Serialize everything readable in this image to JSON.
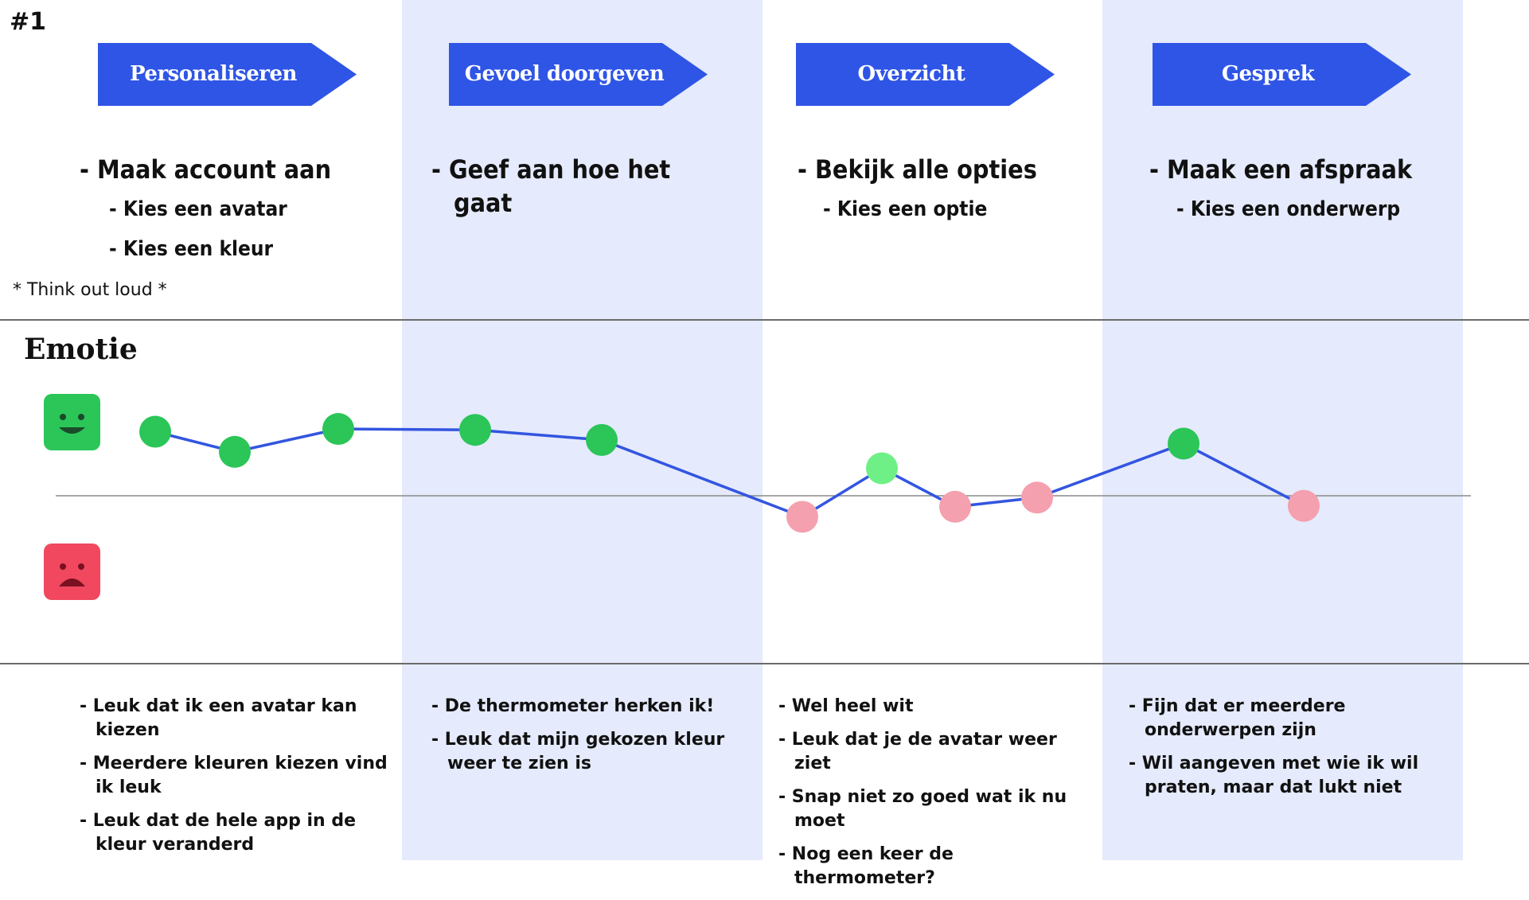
{
  "page": {
    "number": "#1"
  },
  "colors": {
    "accent": "#2f55e6",
    "band": "#e5eafc",
    "positive": "#2bc558",
    "positive_light": "#6ef087",
    "negative": "#f4a0ae",
    "line": "#3355e0"
  },
  "phases": [
    {
      "label": "Personaliseren"
    },
    {
      "label": "Gevoel doorgeven"
    },
    {
      "label": "Overzicht"
    },
    {
      "label": "Gesprek"
    }
  ],
  "tasks": [
    {
      "main": [
        "- Maak account aan"
      ],
      "subs": [
        "- Kies een avatar",
        "- Kies een kleur"
      ]
    },
    {
      "main": [
        "- Geef aan hoe het",
        "gaat"
      ],
      "subs": []
    },
    {
      "main": [
        "- Bekijk alle opties"
      ],
      "subs": [
        "- Kies een optie"
      ]
    },
    {
      "main": [
        "- Maak een afspraak"
      ],
      "subs": [
        "- Kies een onderwerp"
      ]
    }
  ],
  "note": "* Think out loud *",
  "emotion": {
    "title": "Emotie",
    "icons": {
      "positive": "smiley-face-icon",
      "negative": "sad-face-icon"
    }
  },
  "chart_data": {
    "type": "line",
    "ylim": [
      -1,
      1
    ],
    "points": [
      {
        "value": 0.7,
        "sentiment": "positive"
      },
      {
        "value": 0.48,
        "sentiment": "positive"
      },
      {
        "value": 0.73,
        "sentiment": "positive"
      },
      {
        "value": 0.72,
        "sentiment": "positive"
      },
      {
        "value": 0.61,
        "sentiment": "positive"
      },
      {
        "value": -0.23,
        "sentiment": "negative"
      },
      {
        "value": 0.3,
        "sentiment": "positive-light"
      },
      {
        "value": -0.12,
        "sentiment": "negative"
      },
      {
        "value": -0.02,
        "sentiment": "negative"
      },
      {
        "value": 0.57,
        "sentiment": "positive"
      },
      {
        "value": -0.11,
        "sentiment": "negative"
      }
    ]
  },
  "comments": [
    [
      "- Leuk dat ik een avatar kan kiezen",
      "- Meerdere kleuren kiezen vind ik leuk",
      "- Leuk dat de hele app in de kleur veranderd"
    ],
    [
      "- De thermometer herken ik!",
      "- Leuk dat mijn gekozen kleur weer te zien is"
    ],
    [
      "- Wel heel wit",
      "- Leuk dat je de avatar weer ziet",
      "- Snap niet zo goed wat ik nu moet",
      "- Nog een keer de thermometer?"
    ],
    [
      "- Fijn dat er meerdere onderwerpen zijn",
      "- Wil aangeven met wie ik wil praten, maar dat lukt niet"
    ]
  ]
}
